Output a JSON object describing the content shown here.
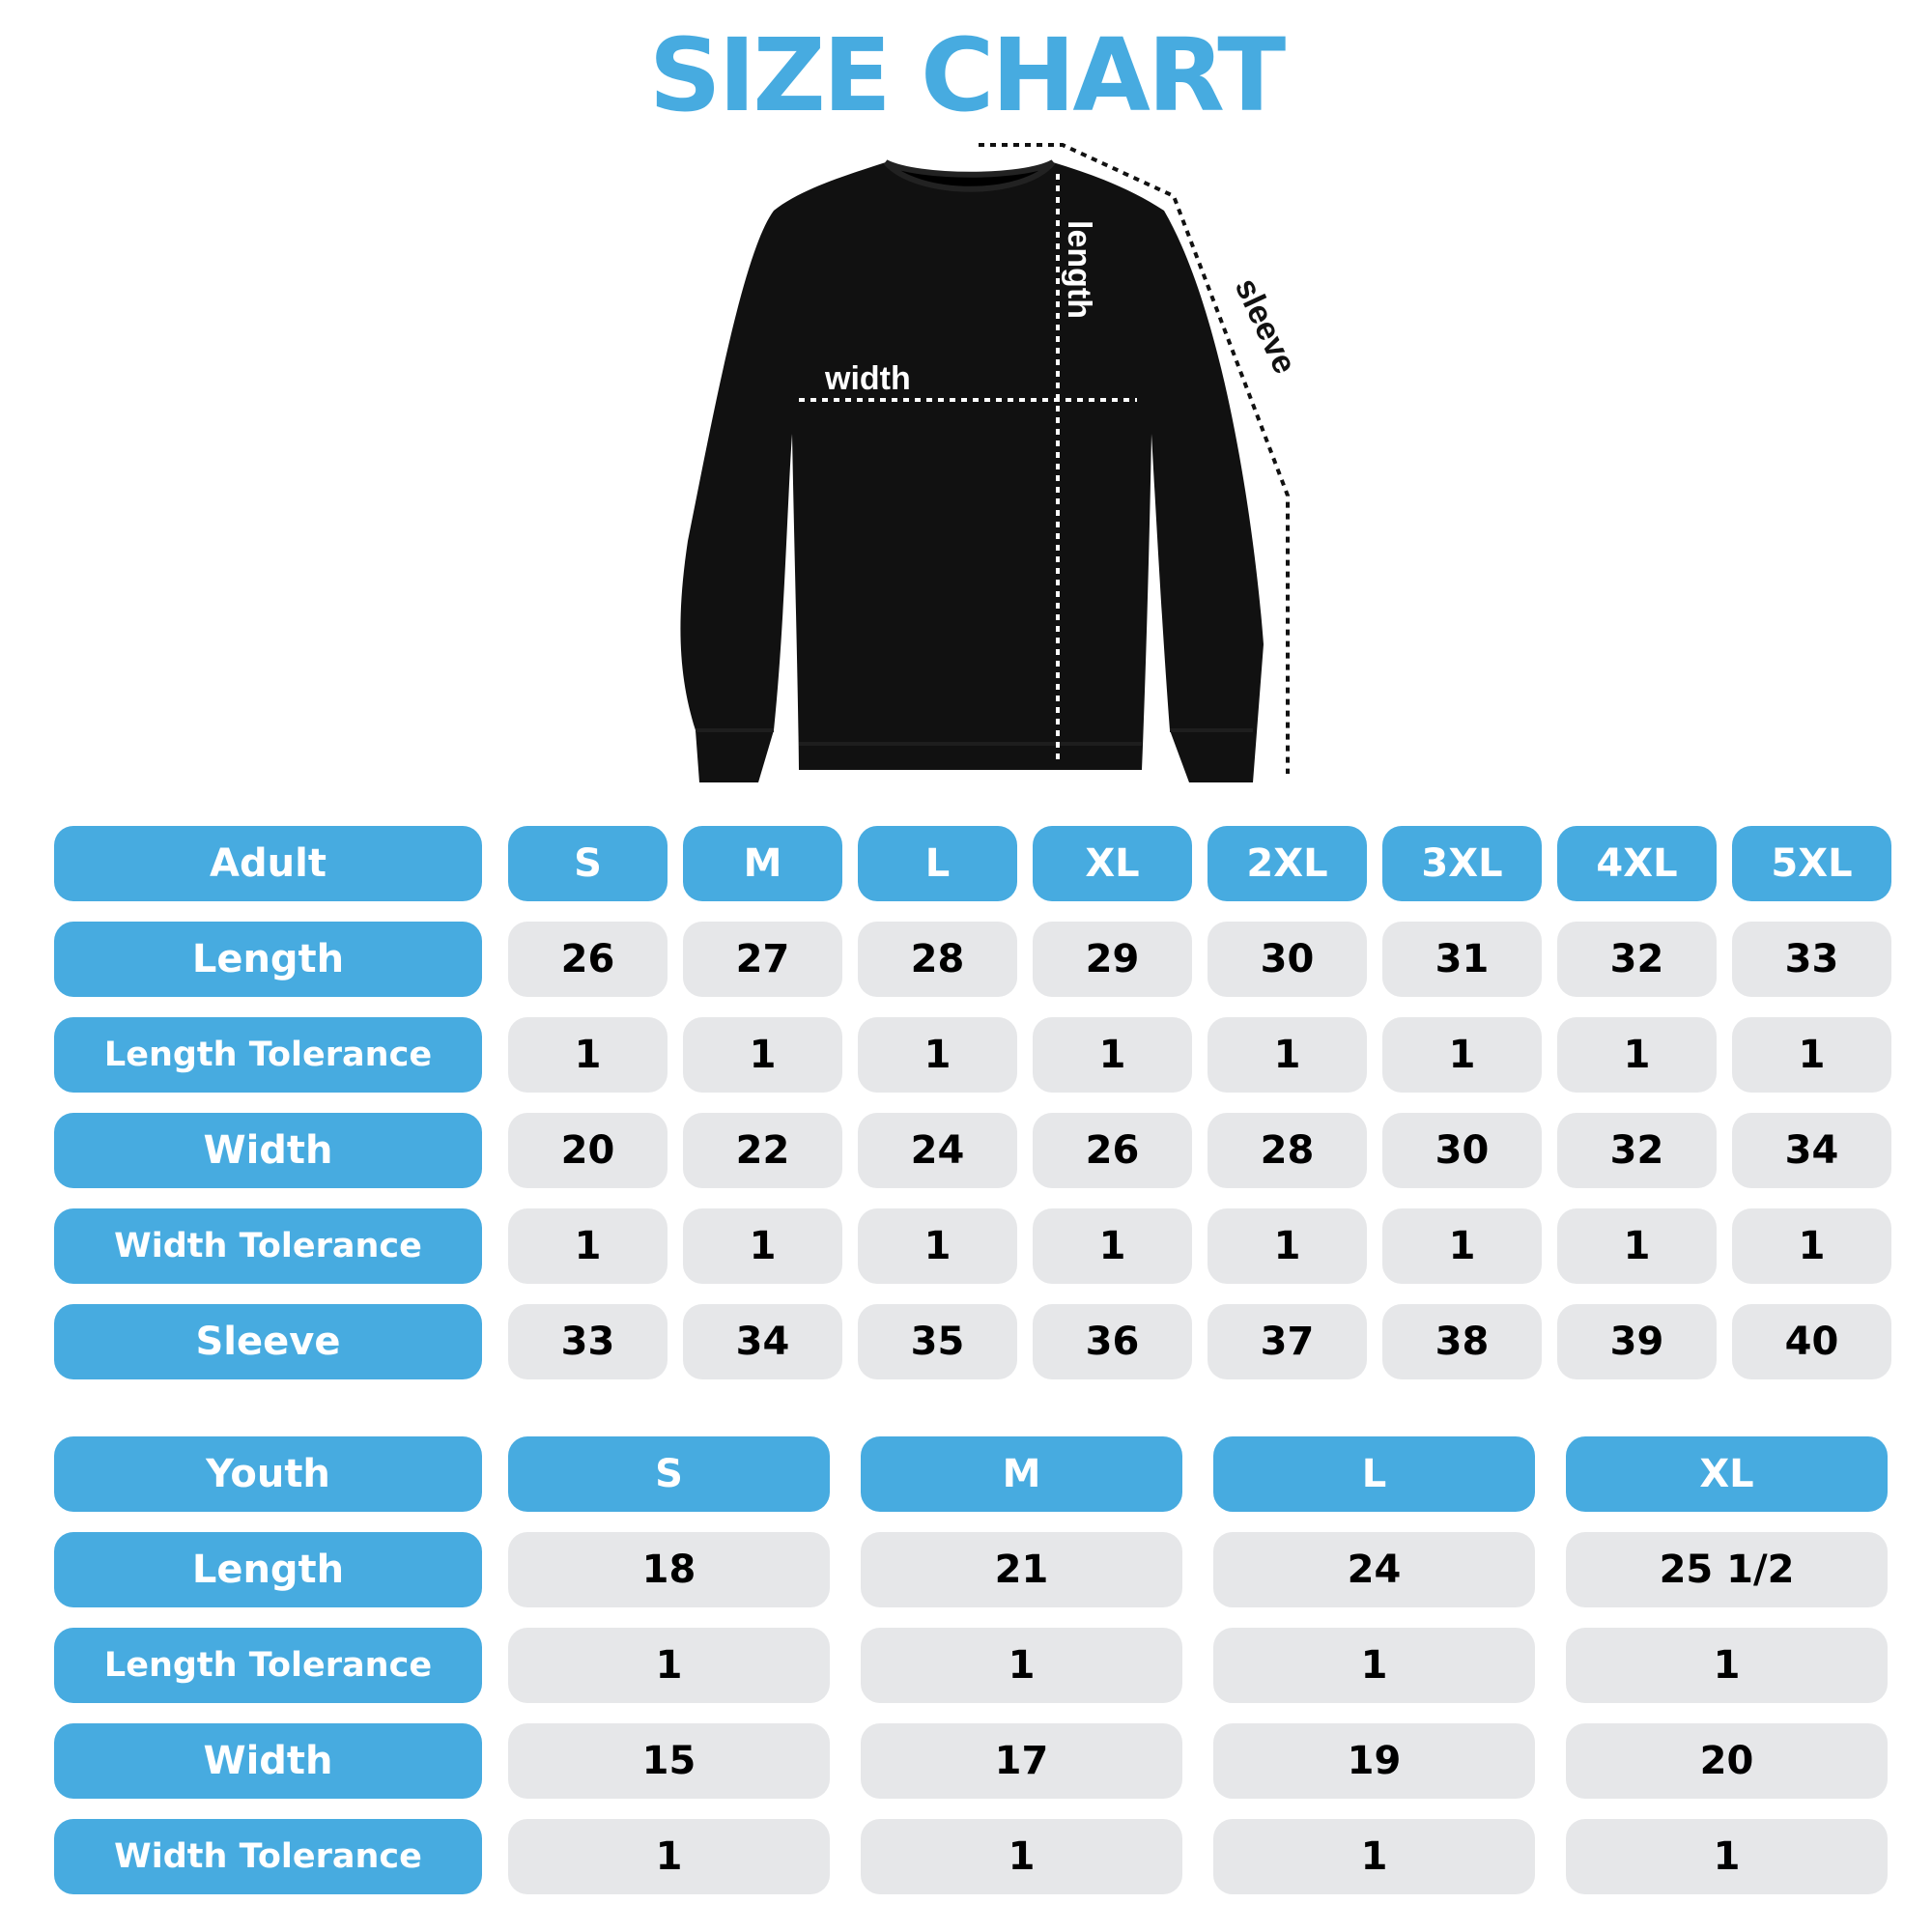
{
  "title": "SIZE CHART",
  "colors": {
    "accent": "#47abe0",
    "cell": "#e6e7e9",
    "text": "#000000"
  },
  "diagram": {
    "width_label": "width",
    "length_label": "length",
    "sleeve_label": "sleeve"
  },
  "adult": {
    "header": "Adult",
    "sizes": [
      "S",
      "M",
      "L",
      "XL",
      "2XL",
      "3XL",
      "4XL",
      "5XL"
    ],
    "rows": [
      {
        "label": "Length",
        "values": [
          "26",
          "27",
          "28",
          "29",
          "30",
          "31",
          "32",
          "33"
        ]
      },
      {
        "label": "Length Tolerance",
        "values": [
          "1",
          "1",
          "1",
          "1",
          "1",
          "1",
          "1",
          "1"
        ]
      },
      {
        "label": "Width",
        "values": [
          "20",
          "22",
          "24",
          "26",
          "28",
          "30",
          "32",
          "34"
        ]
      },
      {
        "label": "Width Tolerance",
        "values": [
          "1",
          "1",
          "1",
          "1",
          "1",
          "1",
          "1",
          "1"
        ]
      },
      {
        "label": "Sleeve",
        "values": [
          "33",
          "34",
          "35",
          "36",
          "37",
          "38",
          "39",
          "40"
        ]
      }
    ]
  },
  "youth": {
    "header": "Youth",
    "sizes": [
      "S",
      "M",
      "L",
      "XL"
    ],
    "rows": [
      {
        "label": "Length",
        "values": [
          "18",
          "21",
          "24",
          "25 1/2"
        ]
      },
      {
        "label": "Length Tolerance",
        "values": [
          "1",
          "1",
          "1",
          "1"
        ]
      },
      {
        "label": "Width",
        "values": [
          "15",
          "17",
          "19",
          "20"
        ]
      },
      {
        "label": "Width Tolerance",
        "values": [
          "1",
          "1",
          "1",
          "1"
        ]
      }
    ]
  }
}
